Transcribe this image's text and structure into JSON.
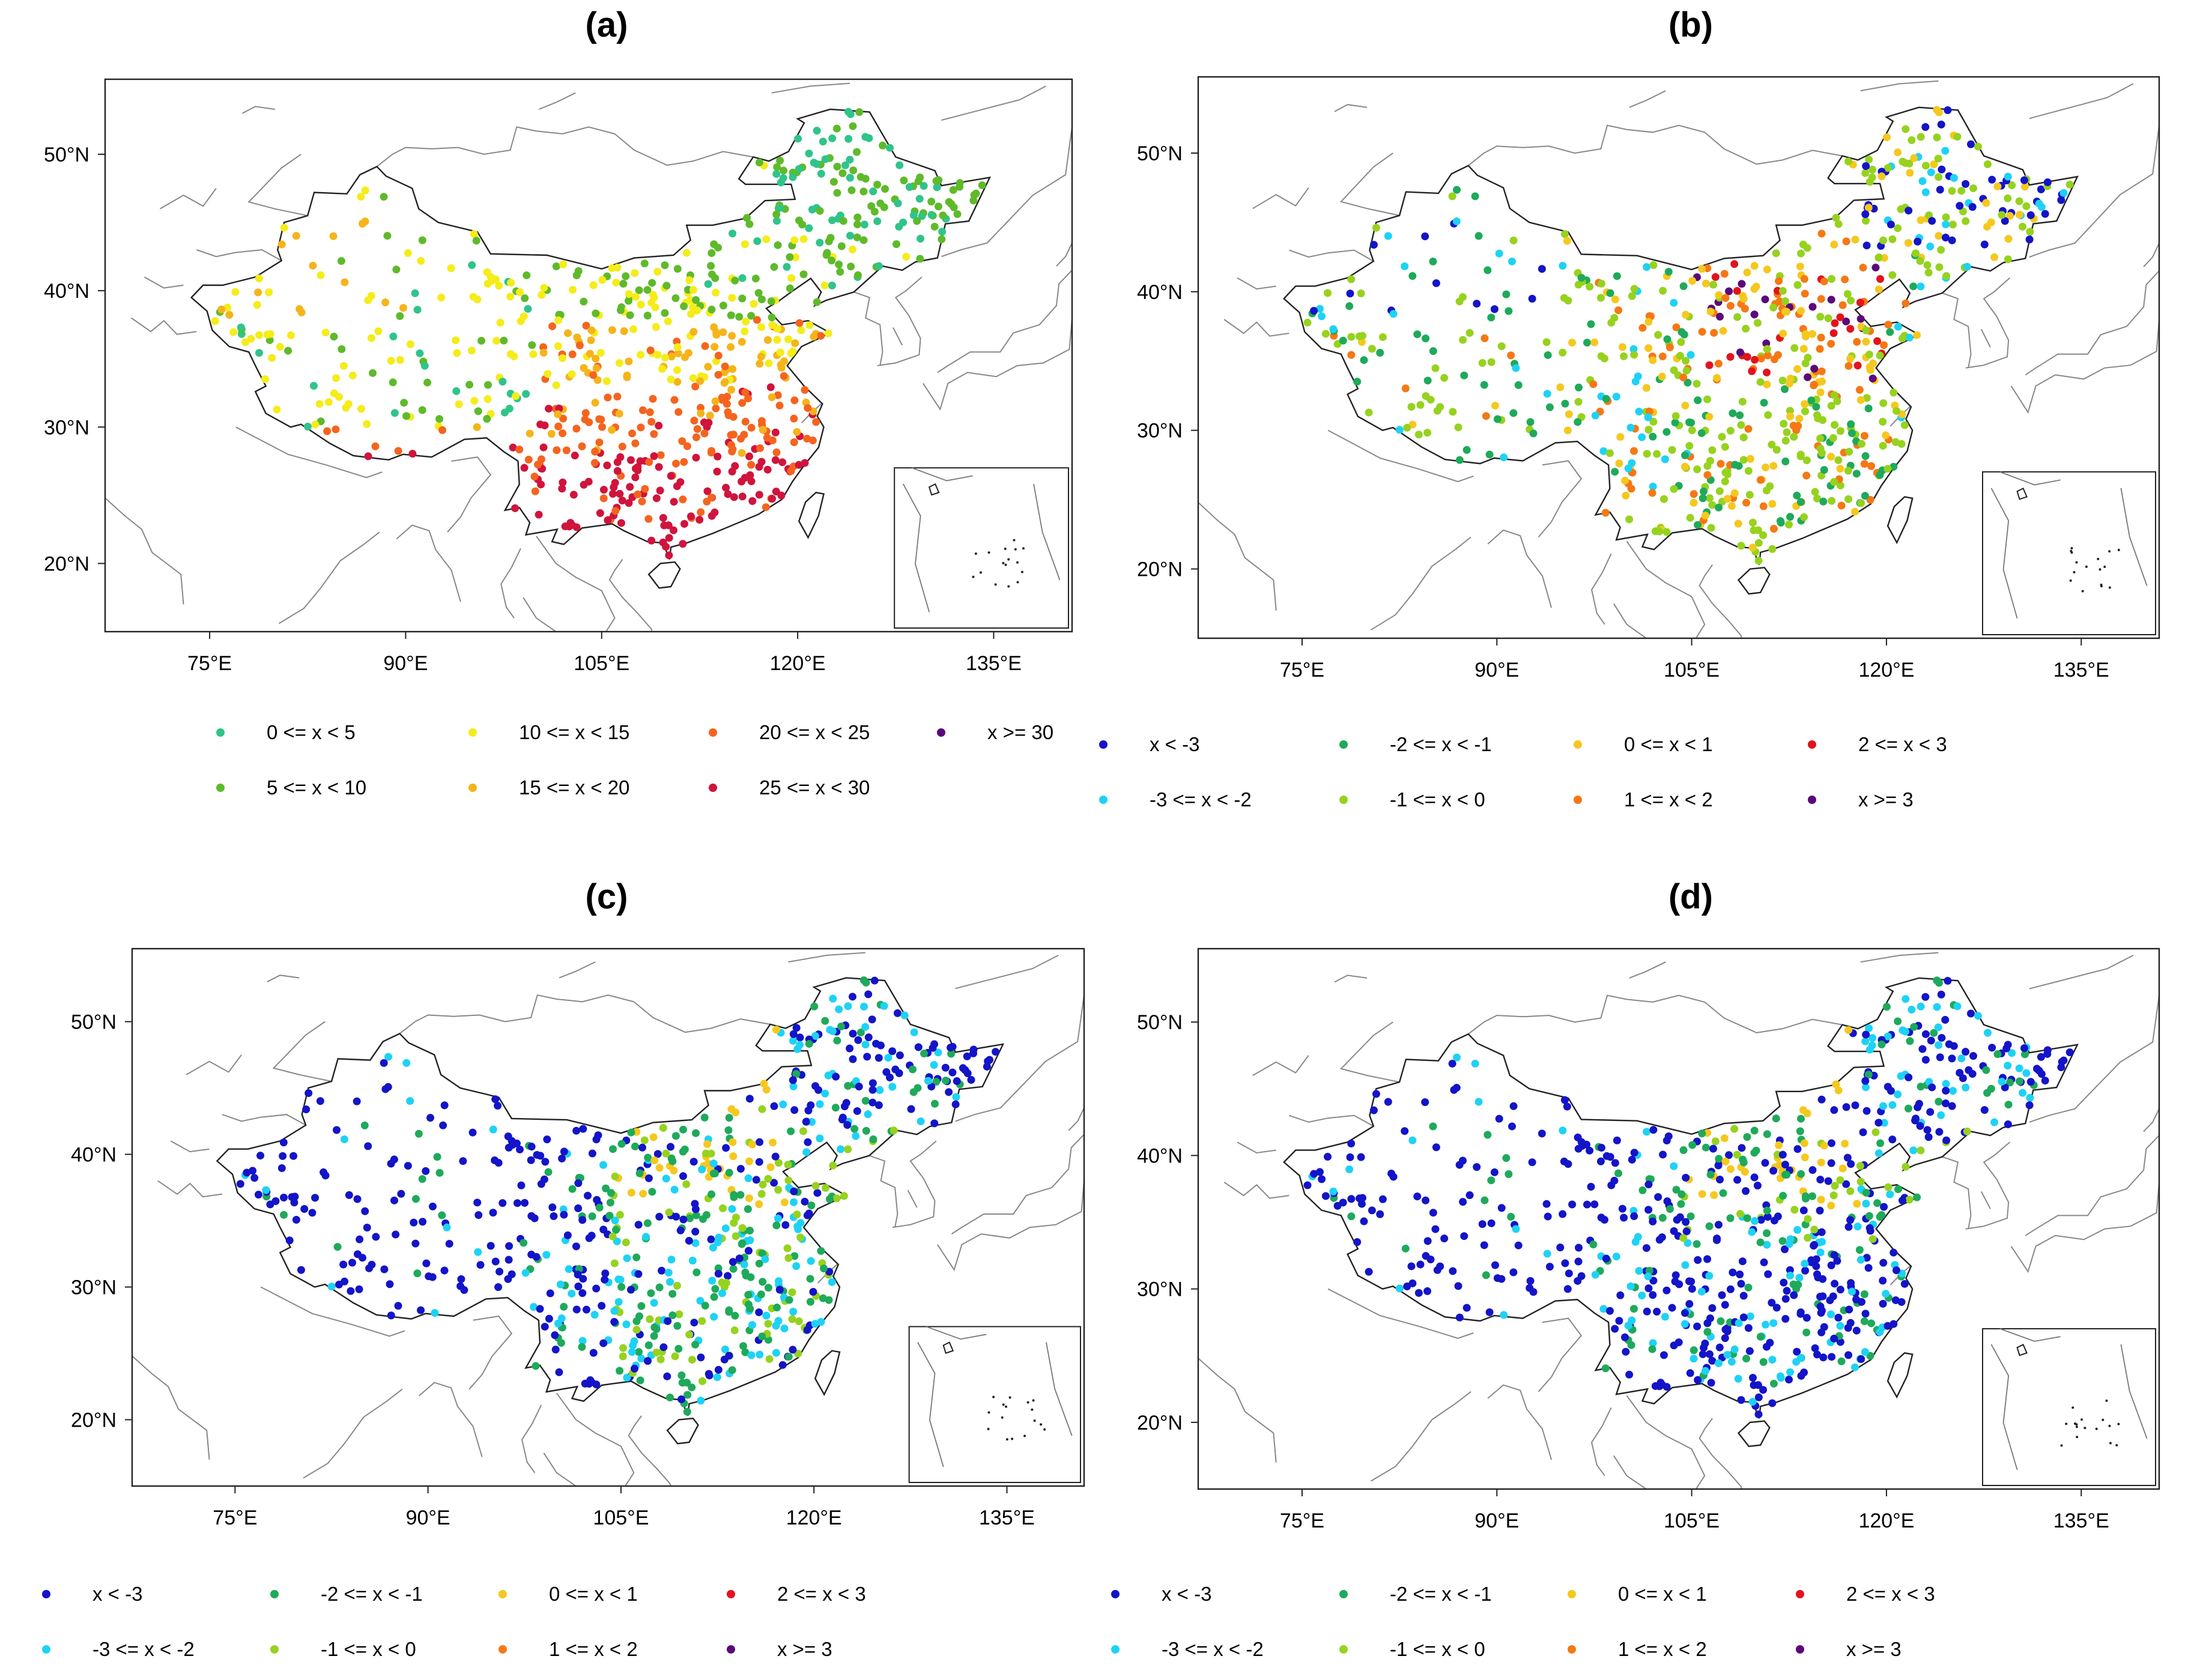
{
  "panels": [
    {
      "id": "a",
      "title": "(a)",
      "lon_ticks": [
        "75°E",
        "90°E",
        "105°E",
        "120°E",
        "135°E"
      ],
      "lat_ticks": [
        "20°N",
        "30°N",
        "40°N",
        "50°N"
      ],
      "legend": [
        {
          "label": "0 <= x < 5",
          "color": "#2fc48a"
        },
        {
          "label": "10 <= x < 15",
          "color": "#f5ec1a"
        },
        {
          "label": "20 <= x < 25",
          "color": "#f5641e"
        },
        {
          "label": "x >= 30",
          "color": "#5a0a78"
        },
        {
          "label": "5 <= x < 10",
          "color": "#5fba2a"
        },
        {
          "label": "15 <= x < 20",
          "color": "#f5b41a"
        },
        {
          "label": "25 <= x < 30",
          "color": "#d0143c"
        }
      ]
    },
    {
      "id": "b",
      "title": "(b)",
      "lon_ticks": [
        "75°E",
        "90°E",
        "105°E",
        "120°E",
        "135°E"
      ],
      "lat_ticks": [
        "20°N",
        "30°N",
        "40°N",
        "50°N"
      ],
      "legend": [
        {
          "label": "x < -3",
          "color": "#1414c8"
        },
        {
          "label": "-2 <= x < -1",
          "color": "#1eaa5a"
        },
        {
          "label": "0 <= x < 1",
          "color": "#f5c81e"
        },
        {
          "label": "2 <= x < 3",
          "color": "#e1141e"
        },
        {
          "label": "-3 <= x < -2",
          "color": "#1ed2f5"
        },
        {
          "label": "-1 <= x < 0",
          "color": "#96d21e"
        },
        {
          "label": "1 <= x < 2",
          "color": "#f57814"
        },
        {
          "label": "x >= 3",
          "color": "#5a0a78"
        }
      ]
    },
    {
      "id": "c",
      "title": "(c)",
      "lon_ticks": [
        "75°E",
        "90°E",
        "105°E",
        "120°E",
        "135°E"
      ],
      "lat_ticks": [
        "20°N",
        "30°N",
        "40°N",
        "50°N"
      ],
      "legend": [
        {
          "label": "x < -3",
          "color": "#1414c8"
        },
        {
          "label": "-2 <= x < -1",
          "color": "#1eaa5a"
        },
        {
          "label": "0 <= x < 1",
          "color": "#f5c81e"
        },
        {
          "label": "2 <= x < 3",
          "color": "#e1141e"
        },
        {
          "label": "-3 <= x < -2",
          "color": "#1ed2f5"
        },
        {
          "label": "-1 <= x < 0",
          "color": "#96d21e"
        },
        {
          "label": "1 <= x < 2",
          "color": "#f57814"
        },
        {
          "label": "x >= 3",
          "color": "#5a0a78"
        }
      ]
    },
    {
      "id": "d",
      "title": "(d)",
      "lon_ticks": [
        "75°E",
        "90°E",
        "105°E",
        "120°E",
        "135°E"
      ],
      "lat_ticks": [
        "20°N",
        "30°N",
        "40°N",
        "50°N"
      ],
      "legend": [
        {
          "label": "x < -3",
          "color": "#1414c8"
        },
        {
          "label": "-2 <= x < -1",
          "color": "#1eaa5a"
        },
        {
          "label": "0 <= x < 1",
          "color": "#f5c81e"
        },
        {
          "label": "2 <= x < 3",
          "color": "#e1141e"
        },
        {
          "label": "-3 <= x < -2",
          "color": "#1ed2f5"
        },
        {
          "label": "-1 <= x < 0",
          "color": "#96d21e"
        },
        {
          "label": "1 <= x < 2",
          "color": "#f57814"
        },
        {
          "label": "x >= 3",
          "color": "#5a0a78"
        }
      ]
    }
  ]
}
